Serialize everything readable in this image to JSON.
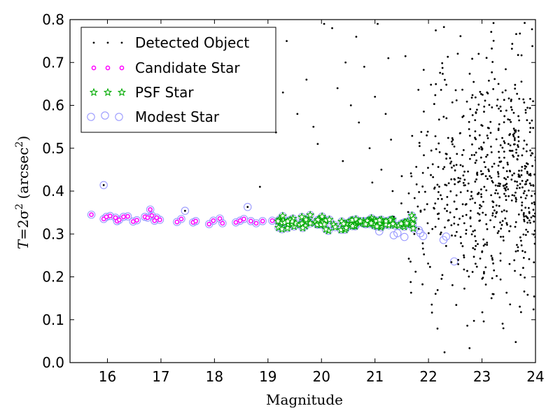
{
  "chart_data": {
    "type": "scatter",
    "xlabel": "Magnitude",
    "ylabel": {
      "prefix": "T",
      "mid": "=2σ",
      "sup1": "2",
      "unit": " (arcsec",
      "sup2": "2",
      "close": ")"
    },
    "xlim": [
      15.3,
      24
    ],
    "ylim": [
      0,
      0.8
    ],
    "x_ticks": [
      "16",
      "17",
      "18",
      "19",
      "20",
      "21",
      "22",
      "23",
      "24"
    ],
    "y_ticks": [
      "0.0",
      "0.1",
      "0.2",
      "0.3",
      "0.4",
      "0.5",
      "0.6",
      "0.7",
      "0.8"
    ],
    "legend_position": "upper-left",
    "series": [
      {
        "name": "Detected Object",
        "marker": "dot",
        "color": "#000000",
        "generated_region": {
          "count": 650,
          "x_range": [
            21.4,
            24
          ],
          "y_range": [
            0.02,
            0.8
          ],
          "description": "dense cloud of faint detections"
        },
        "points": [
          [
            15.93,
            0.414
          ],
          [
            17.45,
            0.354
          ],
          [
            18.62,
            0.363
          ],
          [
            18.85,
            0.41
          ],
          [
            19.15,
            0.537
          ],
          [
            19.28,
            0.63
          ],
          [
            19.35,
            0.75
          ],
          [
            19.55,
            0.58
          ],
          [
            19.72,
            0.66
          ],
          [
            19.85,
            0.55
          ],
          [
            19.93,
            0.51
          ],
          [
            20.05,
            0.79
          ],
          [
            20.2,
            0.78
          ],
          [
            20.3,
            0.64
          ],
          [
            20.45,
            0.7
          ],
          [
            20.55,
            0.6
          ],
          [
            20.65,
            0.76
          ],
          [
            20.8,
            0.69
          ],
          [
            20.9,
            0.5
          ],
          [
            21.0,
            0.62
          ],
          [
            21.05,
            0.79
          ],
          [
            21.12,
            0.45
          ],
          [
            21.2,
            0.58
          ],
          [
            21.25,
            0.71
          ],
          [
            21.3,
            0.52
          ],
          [
            21.33,
            0.4
          ],
          [
            20.95,
            0.42
          ],
          [
            20.7,
            0.56
          ],
          [
            20.4,
            0.47
          ],
          [
            21.35,
            0.34
          ],
          [
            22.3,
            0.024
          ],
          [
            23.2,
            0.16
          ],
          [
            23.4,
            0.08
          ]
        ]
      },
      {
        "name": "Candidate Star",
        "marker": "circle",
        "color": "#ff00ff",
        "points": [
          [
            15.7,
            0.345
          ],
          [
            15.93,
            0.335
          ],
          [
            15.98,
            0.34
          ],
          [
            16.05,
            0.342
          ],
          [
            16.15,
            0.338
          ],
          [
            16.18,
            0.33
          ],
          [
            16.22,
            0.333
          ],
          [
            16.3,
            0.34
          ],
          [
            16.38,
            0.341
          ],
          [
            16.48,
            0.329
          ],
          [
            16.55,
            0.332
          ],
          [
            16.7,
            0.34
          ],
          [
            16.75,
            0.338
          ],
          [
            16.8,
            0.357
          ],
          [
            16.83,
            0.343
          ],
          [
            16.88,
            0.331
          ],
          [
            16.92,
            0.338
          ],
          [
            16.98,
            0.333
          ],
          [
            17.3,
            0.328
          ],
          [
            17.38,
            0.335
          ],
          [
            17.6,
            0.327
          ],
          [
            17.65,
            0.33
          ],
          [
            17.9,
            0.323
          ],
          [
            17.98,
            0.331
          ],
          [
            18.1,
            0.336
          ],
          [
            18.15,
            0.325
          ],
          [
            18.4,
            0.327
          ],
          [
            18.48,
            0.331
          ],
          [
            18.55,
            0.335
          ],
          [
            18.68,
            0.33
          ],
          [
            18.78,
            0.325
          ],
          [
            18.9,
            0.33
          ],
          [
            19.08,
            0.331
          ]
        ]
      },
      {
        "name": "PSF Star",
        "marker": "star",
        "color": "#00aa00",
        "generated_region": {
          "count": 120,
          "x_range": [
            19.18,
            21.75
          ],
          "y_range": [
            0.305,
            0.345
          ],
          "description": "band of PSF stars around T=0.33"
        }
      },
      {
        "name": "Modest Star",
        "marker": "open-circle",
        "color": "#9999ff",
        "generated_region": {
          "count": 0,
          "x_range": [
            15.7,
            22.5
          ],
          "y_range": [
            0.23,
            0.42
          ],
          "description": "circles around every candidate and PSF star"
        },
        "points": [
          [
            15.93,
            0.414
          ],
          [
            17.45,
            0.354
          ],
          [
            18.62,
            0.363
          ],
          [
            21.08,
            0.306
          ],
          [
            21.35,
            0.297
          ],
          [
            21.42,
            0.302
          ],
          [
            21.55,
            0.293
          ],
          [
            21.82,
            0.309
          ],
          [
            21.85,
            0.302
          ],
          [
            21.9,
            0.295
          ],
          [
            22.28,
            0.286
          ],
          [
            22.33,
            0.294
          ],
          [
            22.48,
            0.236
          ]
        ]
      }
    ]
  }
}
